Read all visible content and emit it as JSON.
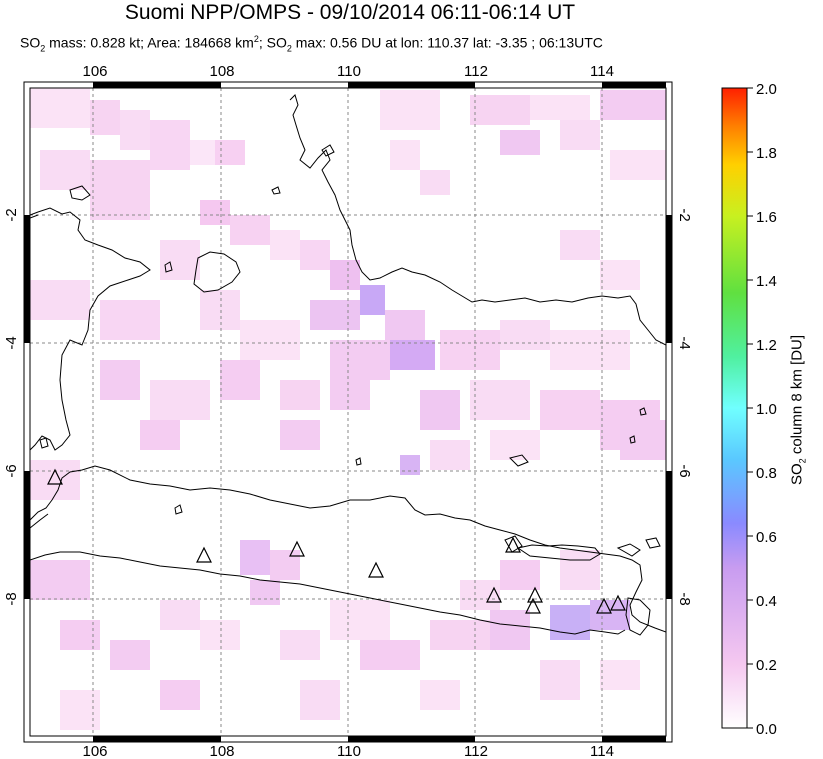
{
  "header": {
    "title": "Suomi NPP/OMPS - 09/10/2014 06:11-06:14 UT",
    "subtitle": {
      "mass_prefix": "SO",
      "mass_sub": "2",
      "mass_text": " mass: 0.828 kt; Area: 184668 km",
      "area_sup": "2",
      "max_prefix": "; SO",
      "max_sub": "2",
      "max_text": " max: 0.56 DU at lon: 110.37 lat: -3.35 ; 06:13UTC"
    }
  },
  "map": {
    "lon_labels": [
      "106",
      "108",
      "110",
      "112",
      "114"
    ],
    "lat_labels": [
      "-2",
      "-4",
      "-6",
      "-8"
    ],
    "volcano_icon": "triangle-marker"
  },
  "colorbar": {
    "tick_labels": [
      "2.0",
      "1.8",
      "1.6",
      "1.4",
      "1.2",
      "1.0",
      "0.8",
      "0.6",
      "0.4",
      "0.2",
      "0.0"
    ],
    "label_prefix": "SO",
    "label_sub": "2",
    "label_text": " column 8 km [DU]",
    "colors": [
      "#ffffff",
      "#f5c8f0",
      "#c89cf0",
      "#8a8aff",
      "#5ac8ff",
      "#70ffff",
      "#50f0a0",
      "#60e040",
      "#c8f020",
      "#ffd000",
      "#ff8000",
      "#ff2000"
    ]
  }
}
